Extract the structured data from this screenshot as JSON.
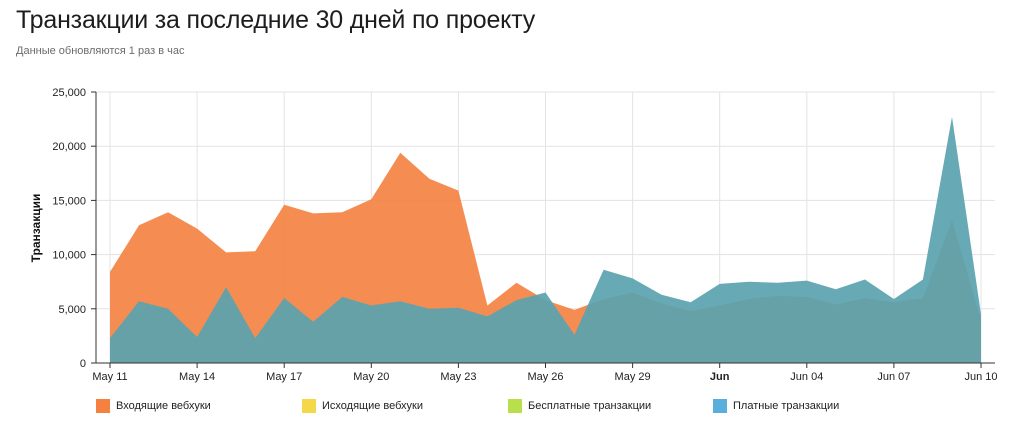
{
  "header": {
    "title": "Транзакции за последние 30 дней по проекту",
    "subtitle": "Данные обновляются 1 раз в час"
  },
  "colors": {
    "incoming": "#f4813f",
    "outgoing": "#f5d84a",
    "free": "#b7e04a",
    "paid": "#4aa0cf",
    "paid_area": "#5aa3b0"
  },
  "chart_data": {
    "type": "area",
    "title": "Транзакции за последние 30 дней по проекту",
    "ylabel": "Транзакции",
    "xlabel": "",
    "ylim": [
      0,
      25000
    ],
    "yticks": [
      "0",
      "5,000",
      "10,000",
      "15,000",
      "20,000",
      "25,000"
    ],
    "ytick_values": [
      0,
      5000,
      10000,
      15000,
      20000,
      25000
    ],
    "xticks": [
      {
        "label": "May 11",
        "date": "2023-05-11",
        "bold": false
      },
      {
        "label": "May 14",
        "date": "2023-05-14",
        "bold": false
      },
      {
        "label": "May 17",
        "date": "2023-05-17",
        "bold": false
      },
      {
        "label": "May 20",
        "date": "2023-05-20",
        "bold": false
      },
      {
        "label": "May 23",
        "date": "2023-05-23",
        "bold": false
      },
      {
        "label": "May 26",
        "date": "2023-05-26",
        "bold": false
      },
      {
        "label": "May 29",
        "date": "2023-05-29",
        "bold": false
      },
      {
        "label": "Jun",
        "date": "2023-06-01",
        "bold": true
      },
      {
        "label": "Jun 04",
        "date": "2023-06-04",
        "bold": false
      },
      {
        "label": "Jun 07",
        "date": "2023-06-07",
        "bold": false
      },
      {
        "label": "Jun 10",
        "date": "2023-06-10",
        "bold": false
      }
    ],
    "grid": true,
    "legend_position": "bottom",
    "series": [
      {
        "name": "Входящие вебхуки",
        "color_key": "incoming",
        "points": [
          [
            "2023-05-11",
            8400
          ],
          [
            "2023-05-12",
            12700
          ],
          [
            "2023-05-13",
            13900
          ],
          [
            "2023-05-14",
            12400
          ],
          [
            "2023-05-15",
            10200
          ],
          [
            "2023-05-16",
            10300
          ],
          [
            "2023-05-17",
            14600
          ],
          [
            "2023-05-18",
            13800
          ],
          [
            "2023-05-19",
            13900
          ],
          [
            "2023-05-20",
            15100
          ],
          [
            "2023-05-21",
            19400
          ],
          [
            "2023-05-22",
            17000
          ],
          [
            "2023-05-23",
            15900
          ],
          [
            "2023-05-24",
            5300
          ],
          [
            "2023-05-25",
            7400
          ],
          [
            "2023-05-26",
            5800
          ],
          [
            "2023-05-27",
            4900
          ],
          [
            "2023-05-28",
            5900
          ],
          [
            "2023-05-29",
            6500
          ],
          [
            "2023-05-30",
            5500
          ],
          [
            "2023-05-31",
            4800
          ],
          [
            "2023-06-01",
            5300
          ],
          [
            "2023-06-02",
            5900
          ],
          [
            "2023-06-03",
            6200
          ],
          [
            "2023-06-04",
            6100
          ],
          [
            "2023-06-05",
            5400
          ],
          [
            "2023-06-06",
            6000
          ],
          [
            "2023-06-07",
            5600
          ],
          [
            "2023-06-08",
            6000
          ],
          [
            "2023-06-09",
            13200
          ],
          [
            "2023-06-10",
            4000
          ]
        ]
      },
      {
        "name": "Исходящие вебхуки",
        "color_key": "outgoing",
        "points": []
      },
      {
        "name": "Бесплатные транзакции",
        "color_key": "free",
        "points": []
      },
      {
        "name": "Платные транзакции",
        "color_key": "paid",
        "points": [
          [
            "2023-05-11",
            2300
          ],
          [
            "2023-05-12",
            5700
          ],
          [
            "2023-05-13",
            5000
          ],
          [
            "2023-05-14",
            2400
          ],
          [
            "2023-05-15",
            7000
          ],
          [
            "2023-05-16",
            2300
          ],
          [
            "2023-05-17",
            6000
          ],
          [
            "2023-05-18",
            3800
          ],
          [
            "2023-05-19",
            6100
          ],
          [
            "2023-05-20",
            5300
          ],
          [
            "2023-05-21",
            5700
          ],
          [
            "2023-05-22",
            5000
          ],
          [
            "2023-05-23",
            5100
          ],
          [
            "2023-05-24",
            4300
          ],
          [
            "2023-05-25",
            5800
          ],
          [
            "2023-05-26",
            6500
          ],
          [
            "2023-05-27",
            2600
          ],
          [
            "2023-05-28",
            8600
          ],
          [
            "2023-05-29",
            7800
          ],
          [
            "2023-05-30",
            6300
          ],
          [
            "2023-05-31",
            5600
          ],
          [
            "2023-06-01",
            7300
          ],
          [
            "2023-06-02",
            7500
          ],
          [
            "2023-06-03",
            7400
          ],
          [
            "2023-06-04",
            7600
          ],
          [
            "2023-06-05",
            6800
          ],
          [
            "2023-06-06",
            7700
          ],
          [
            "2023-06-07",
            5900
          ],
          [
            "2023-06-08",
            7700
          ],
          [
            "2023-06-09",
            22700
          ],
          [
            "2023-06-10",
            4500
          ]
        ]
      }
    ]
  },
  "legend": {
    "items": [
      {
        "label": "Входящие вебхуки",
        "color_key": "incoming"
      },
      {
        "label": "Исходящие вебхуки",
        "color_key": "outgoing"
      },
      {
        "label": "Бесплатные транзакции",
        "color_key": "free"
      },
      {
        "label": "Платные транзакции",
        "color_key": "paid"
      }
    ]
  }
}
